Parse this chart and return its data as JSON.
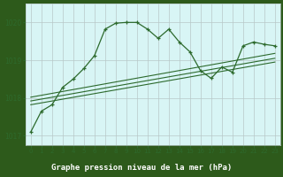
{
  "title": "Graphe pression niveau de la mer (hPa)",
  "bg_color": "#d8f5f5",
  "plot_bg_color": "#d8f5f5",
  "label_bg_color": "#2d5a1b",
  "label_fg_color": "#ffffff",
  "grid_color": "#b8c8c8",
  "line_color": "#2d6a2d",
  "xlim": [
    -0.5,
    23.5
  ],
  "ylim": [
    1016.75,
    1020.5
  ],
  "yticks": [
    1017,
    1018,
    1019,
    1020
  ],
  "xticks": [
    0,
    1,
    2,
    3,
    4,
    5,
    6,
    7,
    8,
    9,
    10,
    11,
    12,
    13,
    14,
    15,
    16,
    17,
    18,
    19,
    20,
    21,
    22,
    23
  ],
  "main_series": [
    [
      0,
      1017.1
    ],
    [
      1,
      1017.65
    ],
    [
      2,
      1017.82
    ],
    [
      3,
      1018.28
    ],
    [
      4,
      1018.5
    ],
    [
      5,
      1018.78
    ],
    [
      6,
      1019.12
    ],
    [
      7,
      1019.82
    ],
    [
      8,
      1019.98
    ],
    [
      9,
      1020.0
    ],
    [
      10,
      1020.0
    ],
    [
      11,
      1019.82
    ],
    [
      12,
      1019.58
    ],
    [
      13,
      1019.82
    ],
    [
      14,
      1019.48
    ],
    [
      15,
      1019.22
    ],
    [
      16,
      1018.72
    ],
    [
      17,
      1018.52
    ],
    [
      18,
      1018.82
    ],
    [
      19,
      1018.68
    ],
    [
      20,
      1019.38
    ],
    [
      21,
      1019.48
    ],
    [
      22,
      1019.42
    ],
    [
      23,
      1019.38
    ]
  ],
  "linear1": [
    [
      0,
      1017.82
    ],
    [
      23,
      1018.95
    ]
  ],
  "linear2": [
    [
      0,
      1017.92
    ],
    [
      23,
      1019.05
    ]
  ],
  "linear3": [
    [
      0,
      1018.02
    ],
    [
      23,
      1019.18
    ]
  ]
}
